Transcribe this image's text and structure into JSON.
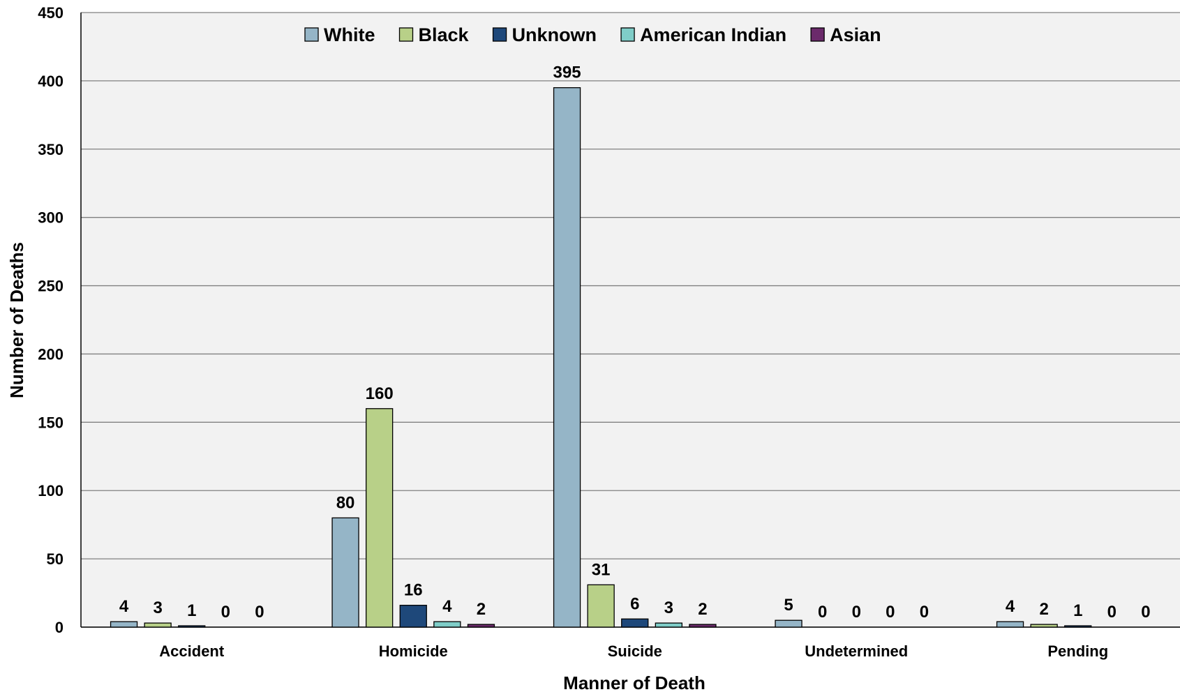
{
  "chart_data": {
    "type": "bar",
    "title": "",
    "xlabel": "Manner of Death",
    "ylabel": "Number of Deaths",
    "ylim": [
      0,
      450
    ],
    "yticks": [
      0,
      50,
      100,
      150,
      200,
      250,
      300,
      350,
      400,
      450
    ],
    "grid": true,
    "legend_position": "top",
    "categories": [
      "Accident",
      "Homicide",
      "Suicide",
      "Undetermined",
      "Pending"
    ],
    "series": [
      {
        "name": "White",
        "color": "#95b5c7",
        "values": [
          4,
          80,
          395,
          5,
          4
        ]
      },
      {
        "name": "Black",
        "color": "#b8d088",
        "values": [
          3,
          160,
          31,
          0,
          2
        ]
      },
      {
        "name": "Unknown",
        "color": "#1e487a",
        "values": [
          1,
          16,
          6,
          0,
          1
        ]
      },
      {
        "name": "American Indian",
        "color": "#7fcdc8",
        "values": [
          0,
          4,
          3,
          0,
          0
        ]
      },
      {
        "name": "Asian",
        "color": "#6b2a6b",
        "values": [
          0,
          2,
          2,
          0,
          0
        ]
      }
    ],
    "plot_background": "#f2f2f2",
    "gridline_color": "#808080"
  }
}
